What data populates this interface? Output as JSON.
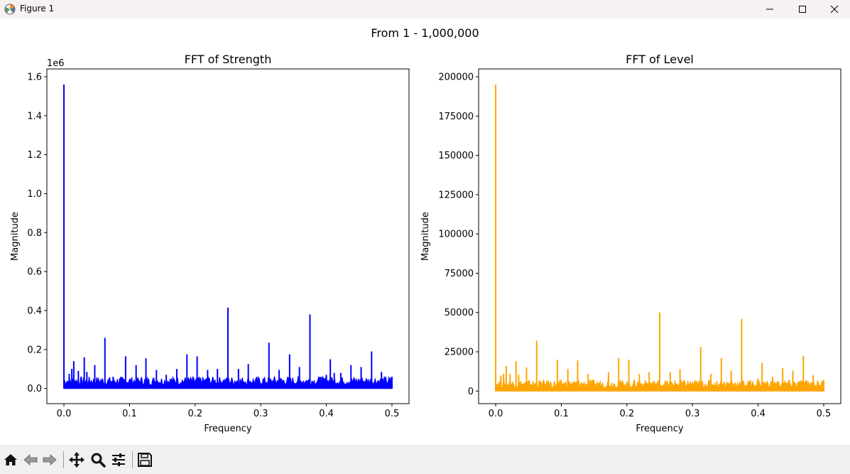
{
  "window": {
    "title": "Figure 1",
    "icons": [
      "matplotlib-app-icon",
      "minimize-icon",
      "maximize-icon",
      "close-icon"
    ]
  },
  "figure": {
    "suptitle": "From 1 - 1,000,000"
  },
  "chart_data": [
    {
      "type": "line",
      "title": "FFT of Strength",
      "xlabel": "Frequency",
      "ylabel": "Magnitude",
      "offset_label": "1e6",
      "color": "#0000ff",
      "xlim": [
        -0.026,
        0.526
      ],
      "ylim": [
        -78000,
        1640000
      ],
      "xticks": [
        0.0,
        0.1,
        0.2,
        0.3,
        0.4,
        0.5
      ],
      "xtick_labels": [
        "0.0",
        "0.1",
        "0.2",
        "0.3",
        "0.4",
        "0.5"
      ],
      "yticks": [
        0,
        200000,
        400000,
        600000,
        800000,
        1000000,
        1200000,
        1400000,
        1600000
      ],
      "ytick_labels": [
        "0.0",
        "0.2",
        "0.4",
        "0.6",
        "0.8",
        "1.0",
        "1.2",
        "1.4",
        "1.6"
      ],
      "noise_floor": 60000,
      "grid": false,
      "peaks": [
        {
          "x": 0.0,
          "y": 1560000
        },
        {
          "x": 0.008,
          "y": 75000
        },
        {
          "x": 0.012,
          "y": 100000
        },
        {
          "x": 0.015,
          "y": 140000
        },
        {
          "x": 0.022,
          "y": 90000
        },
        {
          "x": 0.031,
          "y": 160000
        },
        {
          "x": 0.035,
          "y": 85000
        },
        {
          "x": 0.047,
          "y": 120000
        },
        {
          "x": 0.0625,
          "y": 260000
        },
        {
          "x": 0.075,
          "y": 60000
        },
        {
          "x": 0.094,
          "y": 165000
        },
        {
          "x": 0.11,
          "y": 120000
        },
        {
          "x": 0.125,
          "y": 155000
        },
        {
          "x": 0.141,
          "y": 95000
        },
        {
          "x": 0.156,
          "y": 70000
        },
        {
          "x": 0.172,
          "y": 100000
        },
        {
          "x": 0.1875,
          "y": 175000
        },
        {
          "x": 0.203,
          "y": 165000
        },
        {
          "x": 0.219,
          "y": 95000
        },
        {
          "x": 0.234,
          "y": 100000
        },
        {
          "x": 0.25,
          "y": 415000
        },
        {
          "x": 0.266,
          "y": 100000
        },
        {
          "x": 0.281,
          "y": 125000
        },
        {
          "x": 0.3125,
          "y": 235000
        },
        {
          "x": 0.328,
          "y": 95000
        },
        {
          "x": 0.344,
          "y": 175000
        },
        {
          "x": 0.359,
          "y": 110000
        },
        {
          "x": 0.375,
          "y": 380000
        },
        {
          "x": 0.391,
          "y": 60000
        },
        {
          "x": 0.4,
          "y": 70000
        },
        {
          "x": 0.406,
          "y": 150000
        },
        {
          "x": 0.412,
          "y": 80000
        },
        {
          "x": 0.422,
          "y": 80000
        },
        {
          "x": 0.4375,
          "y": 120000
        },
        {
          "x": 0.453,
          "y": 110000
        },
        {
          "x": 0.469,
          "y": 190000
        },
        {
          "x": 0.484,
          "y": 85000
        },
        {
          "x": 0.5,
          "y": 60000
        }
      ]
    },
    {
      "type": "line",
      "title": "FFT of Level",
      "xlabel": "Frequency",
      "ylabel": "Magnitude",
      "color": "#ffa500",
      "xlim": [
        -0.026,
        0.526
      ],
      "ylim": [
        -8000,
        205000
      ],
      "xticks": [
        0.0,
        0.1,
        0.2,
        0.3,
        0.4,
        0.5
      ],
      "xtick_labels": [
        "0.0",
        "0.1",
        "0.2",
        "0.3",
        "0.4",
        "0.5"
      ],
      "yticks": [
        0,
        25000,
        50000,
        75000,
        100000,
        125000,
        150000,
        175000,
        200000
      ],
      "ytick_labels": [
        "0",
        "25000",
        "50000",
        "75000",
        "100000",
        "125000",
        "150000",
        "175000",
        "200000"
      ],
      "noise_floor": 7000,
      "grid": false,
      "peaks": [
        {
          "x": 0.0,
          "y": 195000
        },
        {
          "x": 0.008,
          "y": 10000
        },
        {
          "x": 0.012,
          "y": 11000
        },
        {
          "x": 0.016,
          "y": 16000
        },
        {
          "x": 0.022,
          "y": 11000
        },
        {
          "x": 0.031,
          "y": 19000
        },
        {
          "x": 0.035,
          "y": 10500
        },
        {
          "x": 0.047,
          "y": 15000
        },
        {
          "x": 0.0625,
          "y": 32000
        },
        {
          "x": 0.094,
          "y": 20000
        },
        {
          "x": 0.11,
          "y": 14000
        },
        {
          "x": 0.125,
          "y": 19500
        },
        {
          "x": 0.141,
          "y": 11000
        },
        {
          "x": 0.172,
          "y": 12000
        },
        {
          "x": 0.1875,
          "y": 21000
        },
        {
          "x": 0.203,
          "y": 20000
        },
        {
          "x": 0.219,
          "y": 11000
        },
        {
          "x": 0.234,
          "y": 12000
        },
        {
          "x": 0.25,
          "y": 50000
        },
        {
          "x": 0.266,
          "y": 12000
        },
        {
          "x": 0.281,
          "y": 14000
        },
        {
          "x": 0.3125,
          "y": 28000
        },
        {
          "x": 0.328,
          "y": 11000
        },
        {
          "x": 0.344,
          "y": 21000
        },
        {
          "x": 0.359,
          "y": 13000
        },
        {
          "x": 0.375,
          "y": 46000
        },
        {
          "x": 0.4,
          "y": 8000
        },
        {
          "x": 0.406,
          "y": 18000
        },
        {
          "x": 0.422,
          "y": 9000
        },
        {
          "x": 0.4375,
          "y": 14500
        },
        {
          "x": 0.453,
          "y": 13000
        },
        {
          "x": 0.469,
          "y": 22500
        },
        {
          "x": 0.484,
          "y": 10000
        },
        {
          "x": 0.5,
          "y": 7000
        }
      ]
    }
  ],
  "toolbar": {
    "buttons": [
      {
        "name": "home-button",
        "icon": "home-icon"
      },
      {
        "name": "back-button",
        "icon": "back-arrow-icon"
      },
      {
        "name": "forward-button",
        "icon": "forward-arrow-icon"
      },
      {
        "name": "pan-button",
        "icon": "move-icon"
      },
      {
        "name": "zoom-button",
        "icon": "magnifier-icon"
      },
      {
        "name": "subplots-button",
        "icon": "sliders-icon"
      },
      {
        "name": "save-button",
        "icon": "floppy-disk-icon"
      }
    ]
  }
}
